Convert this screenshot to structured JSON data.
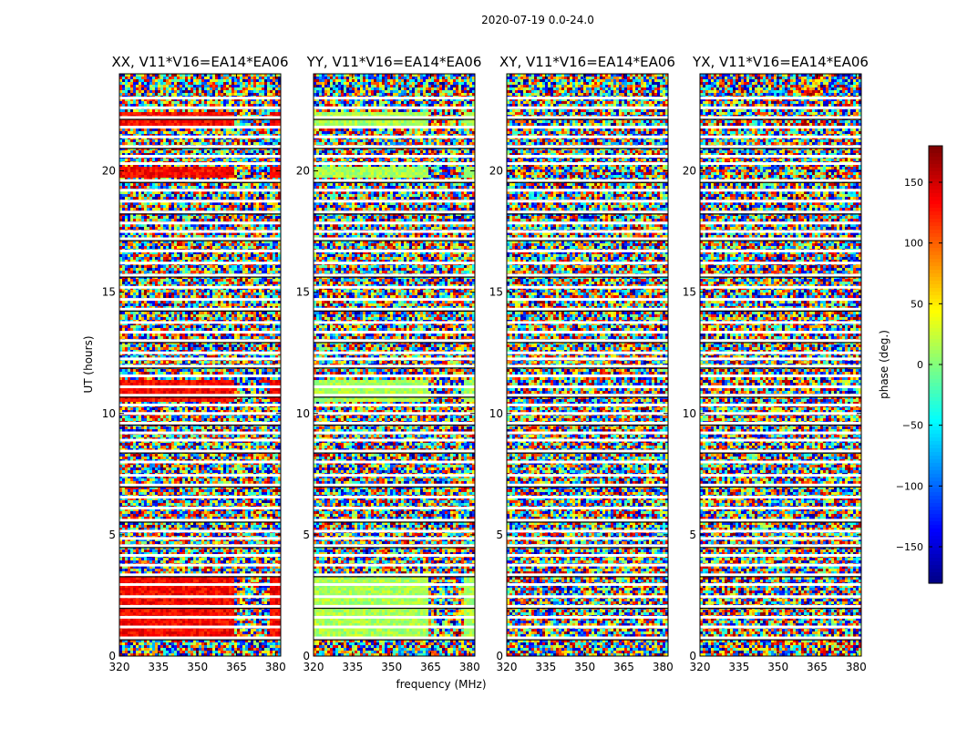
{
  "chart_data": {
    "type": "heatmap",
    "suptitle": "2020-07-19 0.0-24.0",
    "xlabel": "frequency (MHz)",
    "ylabel": "UT (hours)",
    "colorbar_label": "phase (deg.)",
    "colorbar_ticks": [
      150,
      100,
      50,
      0,
      -50,
      -100,
      -150
    ],
    "colorbar_range": [
      -180,
      180
    ],
    "xlim": [
      320,
      382
    ],
    "ylim": [
      0,
      24
    ],
    "x_ticks": [
      320,
      335,
      350,
      365,
      380
    ],
    "y_ticks": [
      0,
      5,
      10,
      15,
      20
    ],
    "colormap": "jet",
    "panels": [
      {
        "title": "XX, V11*V16=EA14*EA06",
        "coherent_phase_deg": 135,
        "coherent_bands_hours": [
          [
            0.8,
            3.3
          ],
          [
            10.5,
            11.4
          ],
          [
            21.8,
            22.5
          ],
          [
            19.8,
            20.2
          ]
        ]
      },
      {
        "title": "YY, V11*V16=EA14*EA06",
        "coherent_phase_deg": 15,
        "coherent_bands_hours": [
          [
            0.8,
            3.3
          ],
          [
            10.5,
            11.4
          ],
          [
            21.8,
            22.5
          ],
          [
            19.8,
            20.2
          ]
        ]
      },
      {
        "title": "XY, V11*V16=EA14*EA06",
        "coherent_phase_deg": null,
        "coherent_bands_hours": []
      },
      {
        "title": "YX, V11*V16=EA14*EA06",
        "coherent_phase_deg": null,
        "coherent_bands_hours": []
      }
    ],
    "flagged_rows_hours": [
      0.75,
      1.2,
      1.6,
      2.05,
      2.45,
      2.95,
      3.35,
      3.75,
      4.15,
      4.55,
      4.85,
      5.15,
      5.6,
      6.1,
      6.55,
      7.05,
      7.45,
      8.0,
      8.45,
      8.9,
      9.2,
      9.6,
      10.0,
      10.35,
      10.75,
      11.1,
      11.55,
      11.95,
      12.25,
      12.5,
      13.0,
      13.35,
      13.75,
      14.3,
      14.7,
      15.2,
      15.7,
      16.2,
      16.7,
      17.2,
      17.5,
      17.85,
      18.3,
      18.75,
      19.2,
      19.6,
      20.3,
      20.6,
      21.0,
      21.4,
      21.8,
      22.2,
      22.6,
      23.0
    ]
  }
}
